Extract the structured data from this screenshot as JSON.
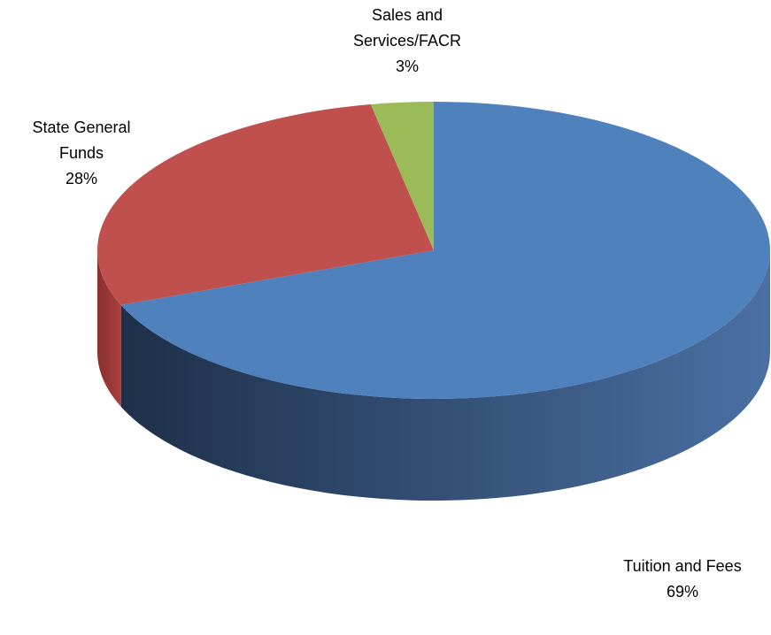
{
  "chart_data": {
    "type": "pie3d",
    "categories": [
      "Tuition and Fees",
      "State General Funds",
      "Sales and Services/FACR"
    ],
    "values": [
      69,
      28,
      3
    ],
    "value_labels": [
      "69%",
      "28%",
      "3%"
    ],
    "colors": [
      "#4f81bd",
      "#c0504d",
      "#9bbb59"
    ],
    "side_colors": [
      [
        "#4a70a3",
        "#1e3049"
      ],
      [
        "#a8403e",
        "#8a2f2d"
      ],
      [
        "#7f9a48",
        "#6a8239"
      ]
    ]
  }
}
